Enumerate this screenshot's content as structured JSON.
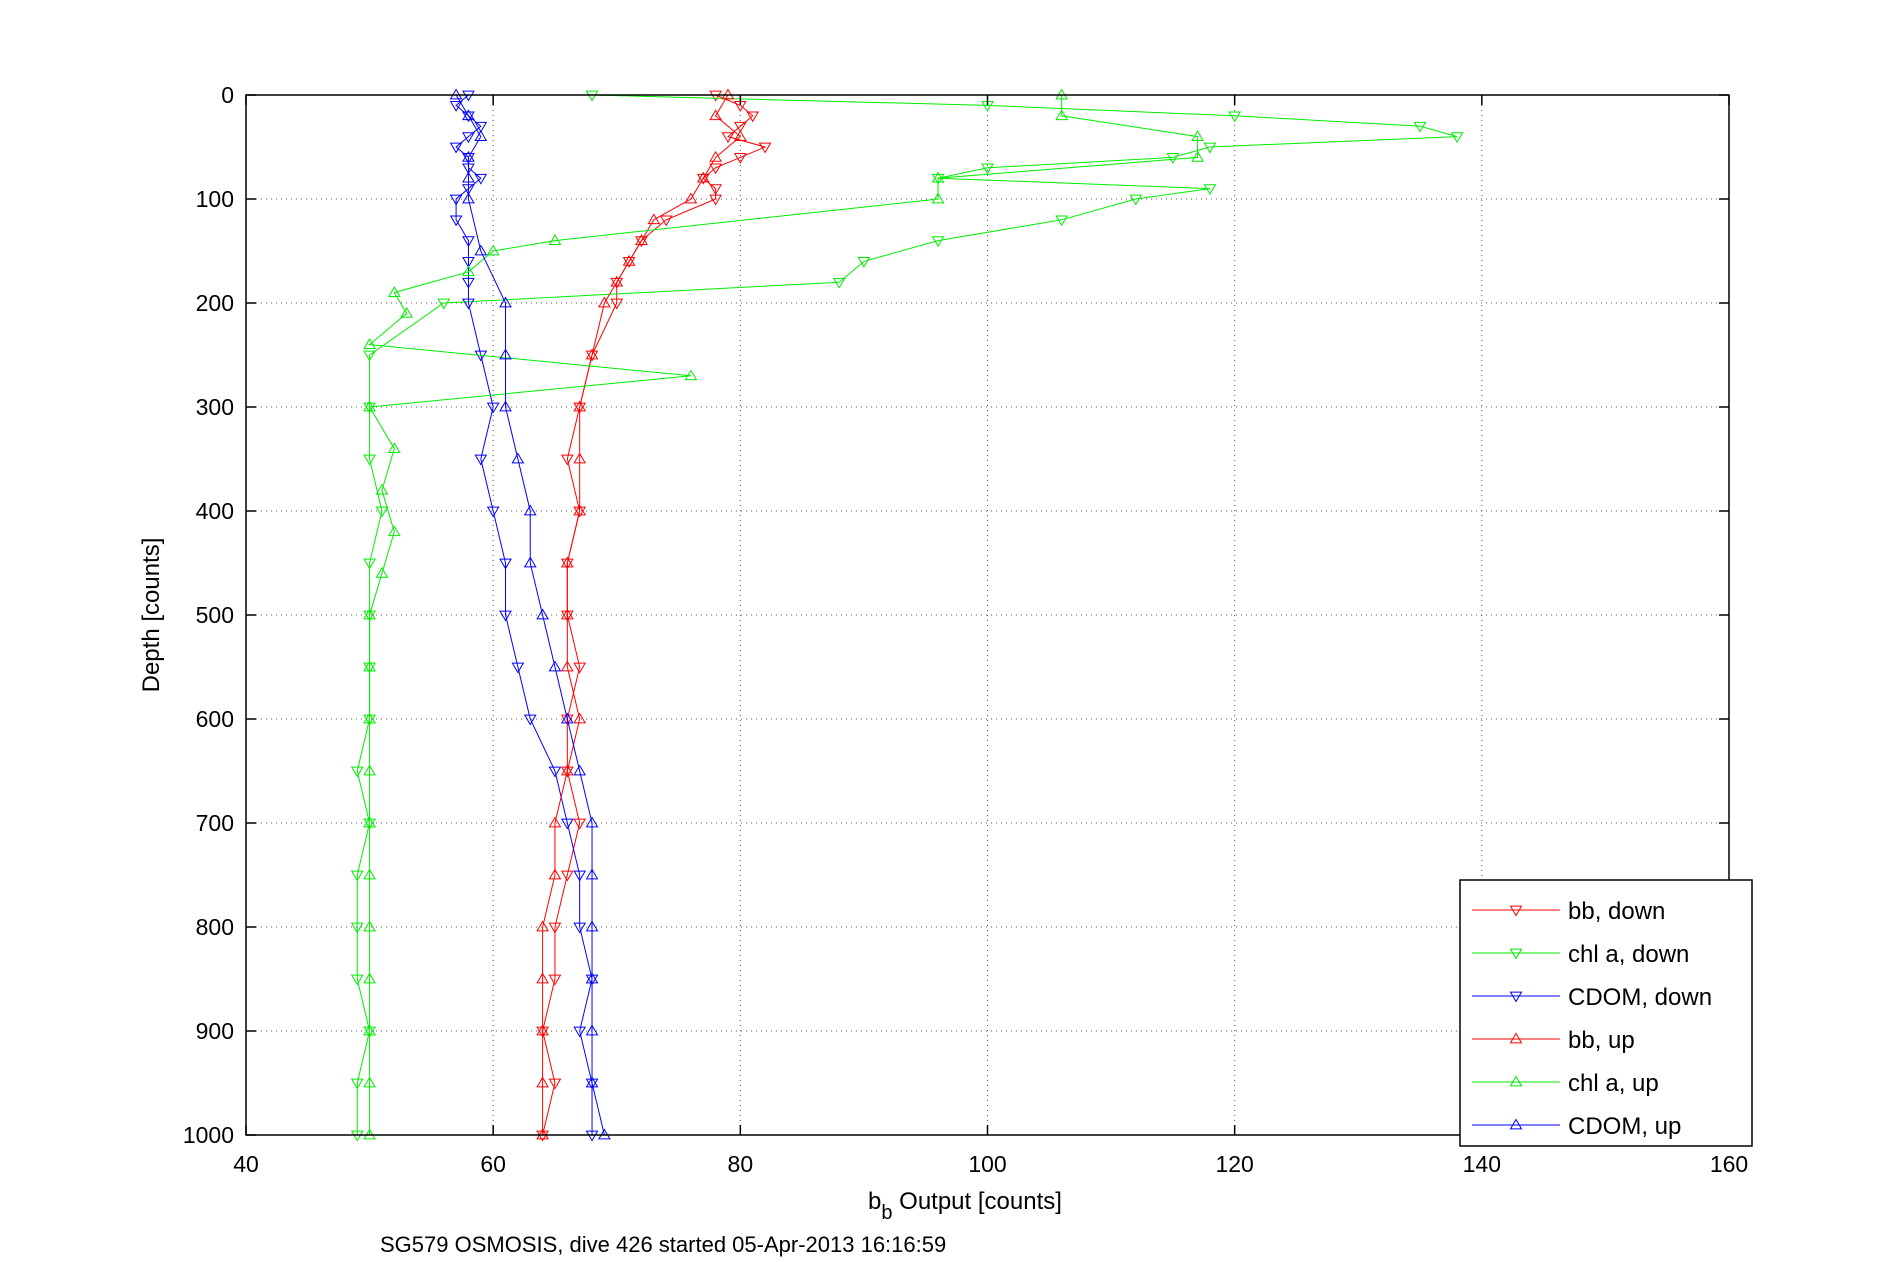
{
  "chart_data": {
    "type": "scatter",
    "title": "",
    "xlabel_main": "b",
    "xlabel_sub": "b",
    "xlabel_rest": " Output [counts]",
    "ylabel": "Depth [counts]",
    "footer": "SG579 OSMOSIS, dive 426 started 05-Apr-2013 16:16:59",
    "xlim": [
      40,
      160
    ],
    "ylim": [
      0,
      1000
    ],
    "y_reversed": true,
    "grid": true,
    "legend_position": "bottom-right",
    "x_ticks": [
      "40",
      "60",
      "80",
      "100",
      "120",
      "140",
      "160"
    ],
    "y_ticks": [
      "0",
      "100",
      "200",
      "300",
      "400",
      "500",
      "600",
      "700",
      "800",
      "900",
      "1000"
    ],
    "series": [
      {
        "name": "bb, down",
        "color": "#ff0000",
        "marker": "triangle-down",
        "depth": [
          0,
          10,
          20,
          30,
          40,
          50,
          60,
          70,
          80,
          90,
          100,
          120,
          140,
          160,
          180,
          200,
          250,
          300,
          350,
          400,
          450,
          500,
          550,
          600,
          650,
          700,
          750,
          800,
          850,
          900,
          950,
          1000
        ],
        "x": [
          78,
          80,
          81,
          80,
          79,
          82,
          80,
          78,
          77,
          78,
          78,
          74,
          72,
          71,
          70,
          70,
          68,
          67,
          66,
          67,
          66,
          66,
          67,
          66,
          66,
          67,
          66,
          65,
          65,
          64,
          65,
          64
        ]
      },
      {
        "name": "chl a, down",
        "color": "#00ee00",
        "marker": "triangle-down",
        "depth": [
          0,
          10,
          20,
          30,
          40,
          50,
          60,
          70,
          80,
          90,
          100,
          120,
          140,
          160,
          180,
          200,
          250,
          300,
          350,
          400,
          450,
          500,
          550,
          600,
          650,
          700,
          750,
          800,
          850,
          900,
          950,
          1000
        ],
        "x": [
          68,
          100,
          120,
          135,
          138,
          118,
          115,
          100,
          96,
          118,
          112,
          106,
          96,
          90,
          88,
          56,
          50,
          50,
          50,
          51,
          50,
          50,
          50,
          50,
          49,
          50,
          49,
          49,
          49,
          50,
          49,
          49
        ]
      },
      {
        "name": "CDOM, down",
        "color": "#0000ff",
        "marker": "triangle-down",
        "depth": [
          0,
          10,
          20,
          30,
          40,
          50,
          60,
          70,
          80,
          90,
          100,
          120,
          140,
          160,
          180,
          200,
          250,
          300,
          350,
          400,
          450,
          500,
          550,
          600,
          650,
          700,
          750,
          800,
          850,
          900,
          950,
          1000
        ],
        "x": [
          58,
          57,
          58,
          59,
          58,
          57,
          58,
          58,
          59,
          58,
          57,
          57,
          58,
          58,
          58,
          58,
          59,
          60,
          59,
          60,
          61,
          61,
          62,
          63,
          65,
          66,
          67,
          67,
          68,
          67,
          68,
          68
        ]
      },
      {
        "name": "bb, up",
        "color": "#ff0000",
        "marker": "triangle-up",
        "depth": [
          0,
          20,
          40,
          60,
          80,
          100,
          120,
          140,
          160,
          180,
          200,
          250,
          300,
          350,
          400,
          450,
          500,
          550,
          600,
          650,
          700,
          750,
          800,
          850,
          900,
          950,
          1000
        ],
        "x": [
          79,
          78,
          80,
          78,
          77,
          76,
          73,
          72,
          71,
          70,
          69,
          68,
          67,
          67,
          67,
          66,
          66,
          66,
          67,
          66,
          65,
          65,
          64,
          64,
          64,
          64,
          64
        ]
      },
      {
        "name": "chl a, up",
        "color": "#00ee00",
        "marker": "triangle-up",
        "depth": [
          0,
          20,
          40,
          60,
          80,
          100,
          140,
          150,
          170,
          190,
          210,
          240,
          270,
          300,
          340,
          380,
          420,
          460,
          500,
          550,
          600,
          650,
          700,
          750,
          800,
          850,
          900,
          950,
          1000
        ],
        "x": [
          106,
          106,
          117,
          117,
          96,
          96,
          65,
          60,
          58,
          52,
          53,
          50,
          76,
          50,
          52,
          51,
          52,
          51,
          50,
          50,
          50,
          50,
          50,
          50,
          50,
          50,
          50,
          50,
          50
        ]
      },
      {
        "name": "CDOM, up",
        "color": "#0000ff",
        "marker": "triangle-up",
        "depth": [
          0,
          20,
          40,
          60,
          80,
          100,
          150,
          200,
          250,
          300,
          350,
          400,
          450,
          500,
          550,
          600,
          650,
          700,
          750,
          800,
          850,
          900,
          950,
          1000
        ],
        "x": [
          57,
          58,
          59,
          58,
          58,
          58,
          59,
          61,
          61,
          61,
          62,
          63,
          63,
          64,
          65,
          66,
          67,
          68,
          68,
          68,
          68,
          68,
          68,
          69
        ]
      }
    ]
  }
}
